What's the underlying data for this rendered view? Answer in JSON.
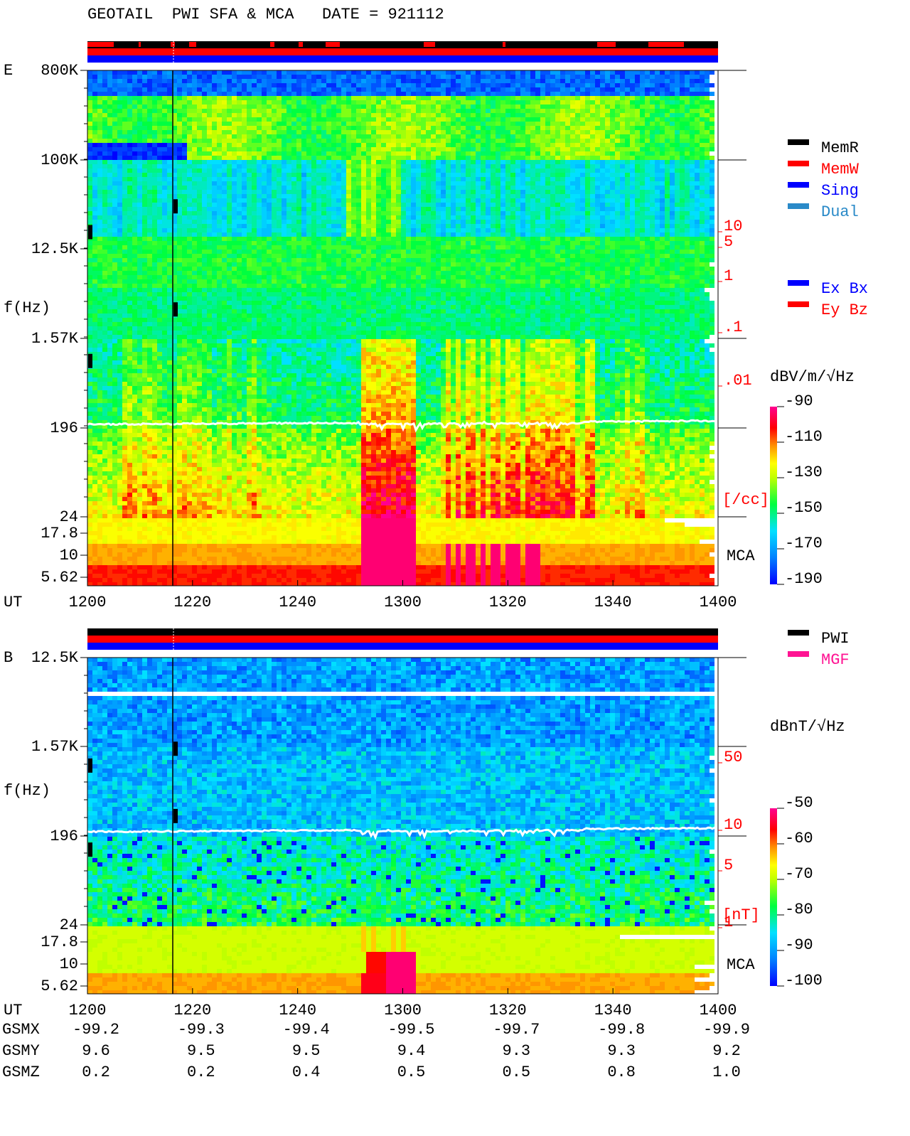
{
  "header": {
    "title": "GEOTAIL  PWI SFA & MCA   DATE = 921112"
  },
  "panels": [
    {
      "label": "E",
      "ylabel": "f(Hz)",
      "freq_ticks": [
        "800K",
        "100K",
        "12.5K",
        "1.57K",
        "196",
        "24",
        "17.8",
        "10",
        "5.62"
      ],
      "right_scale": [
        "10",
        "5",
        "1",
        ".1",
        ".01"
      ],
      "right_unit": "[/cc]",
      "mca": "MCA",
      "xlabel": "UT",
      "xticks": [
        "1200",
        "1220",
        "1240",
        "1300",
        "1320",
        "1340",
        "1400"
      ],
      "legend": [
        {
          "name": "MemR",
          "color": "#000000"
        },
        {
          "name": "MemW",
          "color": "#ff0000"
        },
        {
          "name": "Sing",
          "color": "#0000ff"
        },
        {
          "name": "Dual",
          "color": "#2a8ac8"
        }
      ],
      "legend2": [
        {
          "name": "Ex Bx",
          "color": "#0000ff"
        },
        {
          "name": "Ey Bz",
          "color": "#ff0000"
        }
      ],
      "colorbar": {
        "unit": "dBV/m/√Hz",
        "range": [
          -190,
          -90
        ],
        "ticks": [
          -90,
          -110,
          -130,
          -150,
          -170,
          -190
        ]
      }
    },
    {
      "label": "B",
      "ylabel": "f(Hz)",
      "freq_ticks": [
        "12.5K",
        "1.57K",
        "196",
        "24",
        "17.8",
        "10",
        "5.62"
      ],
      "right_scale": [
        "50",
        "10",
        "5",
        "1"
      ],
      "right_unit": "[nT]",
      "mca": "MCA",
      "xlabel": "UT",
      "xticks": [
        "1200",
        "1220",
        "1240",
        "1300",
        "1320",
        "1340",
        "1400"
      ],
      "legend": [
        {
          "name": "PWI",
          "color": "#000000"
        },
        {
          "name": "MGF",
          "color": "#ff1493"
        }
      ],
      "colorbar": {
        "unit": "dBnT/√Hz",
        "range": [
          -100,
          -50
        ],
        "ticks": [
          -50,
          -60,
          -70,
          -80,
          -90,
          -100
        ]
      }
    }
  ],
  "position": {
    "rows": [
      {
        "name": "GSMX",
        "values": [
          "-99.2",
          "-99.3",
          "-99.4",
          "-99.5",
          "-99.7",
          "-99.8",
          "-99.9"
        ]
      },
      {
        "name": "GSMY",
        "values": [
          "9.6",
          "9.5",
          "9.5",
          "9.4",
          "9.3",
          "9.3",
          "9.2"
        ]
      },
      {
        "name": "GSMZ",
        "values": [
          "0.2",
          "0.2",
          "0.4",
          "0.5",
          "0.5",
          "0.8",
          "1.0"
        ]
      }
    ]
  }
}
